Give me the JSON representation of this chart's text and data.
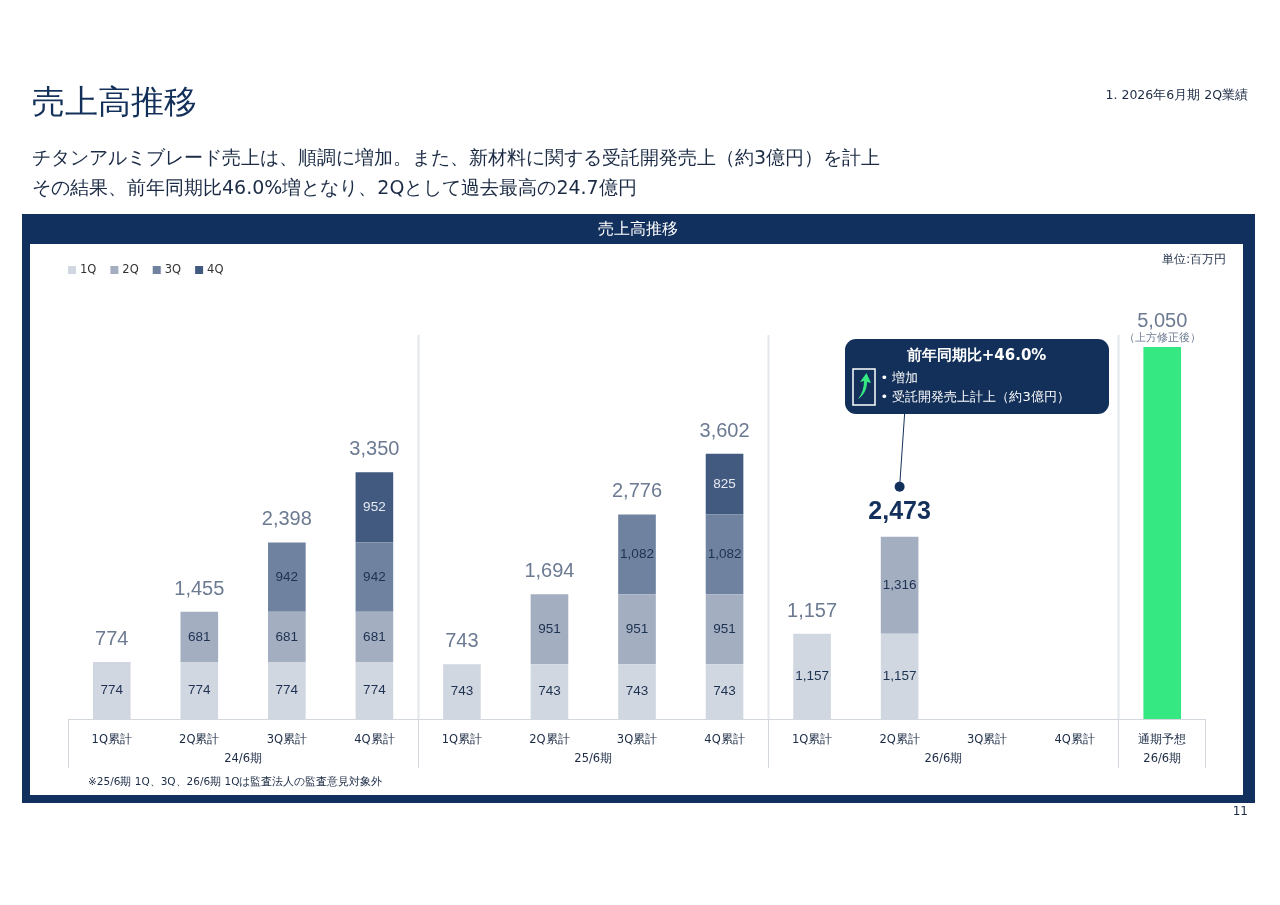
{
  "chart_data": {
    "type": "bar",
    "title": "売上高推移",
    "subtitle": "チタンアルミブレード売上は、順調に増加。また、新材料に関する受託開発売上（約3億円）を計上その結果、前年同期比46.0%増となり、2Qとして過去最高の24.7億円",
    "annotations": [
      "1. 2026年6月期 2Q業績",
      "売上高推移",
      "単位:百万円",
      "※25/6期 1Q、3Q、26/6期 1Qは監査法人の監査意見対象外",
      "11",
      "24/6期",
      "25/6期",
      "26/6期",
      "26/6期",
      "前年同期比+46.0%\n• 増加\n• 受託開発売上計上（約3億円）",
      {
        "text": "（上方修正後）",
        "x": "通期予想",
        "y": 5050
      }
    ],
    "categories": [
      "1Q累計",
      "2Q累計",
      "3Q累計",
      "4Q累計",
      "1Q累計",
      "2Q累計",
      "3Q累計",
      "4Q累計",
      "1Q累計",
      "2Q累計",
      "3Q累計",
      "4Q累計",
      "通期予想"
    ],
    "stacked": true,
    "legend": "top left",
    "series": [
      {
        "name": "1Q",
        "color": "#d1d7e1",
        "values": [
          774,
          774,
          774,
          774,
          743,
          743,
          743,
          743,
          1157,
          1157,
          null,
          null,
          null
        ],
        "value_labels": [
          "774",
          "774",
          "774",
          "774",
          "743",
          "743",
          "743",
          "743",
          "1,157",
          "1,157",
          null,
          null,
          null
        ]
      },
      {
        "name": "2Q",
        "color": "#a3aec1",
        "values": [
          null,
          681,
          681,
          681,
          null,
          951,
          951,
          951,
          null,
          1316,
          null,
          null,
          null
        ],
        "value_labels": [
          null,
          "681",
          "681",
          "681",
          null,
          "951",
          "951",
          "951",
          null,
          "1,316",
          null,
          null,
          null
        ]
      },
      {
        "name": "3Q",
        "color": "#6f83a1",
        "values": [
          null,
          null,
          942,
          942,
          null,
          null,
          1082,
          1082,
          null,
          null,
          null,
          null,
          null
        ],
        "value_labels": [
          null,
          null,
          "942",
          "942",
          null,
          null,
          "1,082",
          "1,082",
          null,
          null,
          null,
          null,
          null
        ]
      },
      {
        "name": "4Q",
        "color": "#425a80",
        "values": [
          null,
          null,
          null,
          952,
          null,
          null,
          null,
          825,
          null,
          null,
          null,
          null,
          null
        ],
        "value_labels": [
          null,
          null,
          null,
          "952",
          null,
          null,
          null,
          "825",
          null,
          null,
          null,
          null,
          null
        ]
      },
      {
        "color": "#35e882",
        "values": [
          null,
          null,
          null,
          null,
          null,
          null,
          null,
          null,
          null,
          null,
          null,
          null,
          5050
        ]
      }
    ],
    "totals": [
      "774",
      "1,455",
      "2,398",
      "3,350",
      "743",
      "1,694",
      "2,776",
      "3,602",
      "1,157",
      "2,473",
      null,
      null,
      "5,050"
    ]
  }
}
